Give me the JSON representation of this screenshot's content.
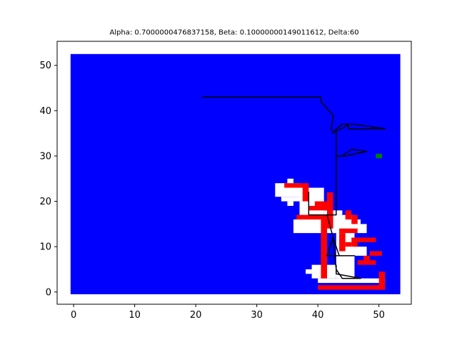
{
  "chart_data": {
    "type": "heatmap",
    "title": "Alpha: 0.7000000476837158, Beta: 0.10000000149011612, Delta:60",
    "xlabel": "",
    "ylabel": "",
    "xlim": [
      -2.7,
      55.3
    ],
    "ylim": [
      -2.7,
      55.3
    ],
    "x_ticks": [
      0,
      10,
      20,
      30,
      40,
      50
    ],
    "y_ticks": [
      0,
      10,
      20,
      30,
      40,
      50
    ],
    "x_tick_labels": [
      "0",
      "10",
      "20",
      "30",
      "40",
      "50"
    ],
    "y_tick_labels": [
      "0",
      "10",
      "20",
      "30",
      "40",
      "50"
    ],
    "grid": false,
    "background_extent": [
      -0.5,
      53.5,
      -0.5,
      52.5
    ],
    "colors": {
      "background": "#0000ff",
      "explored": "#ffffff",
      "obstacle": "#ff0000",
      "goal": "#008000",
      "path": "#000000"
    },
    "explored_cells": [
      [
        35,
        24,
        36,
        25
      ],
      [
        33,
        21,
        37,
        24
      ],
      [
        34,
        20,
        37,
        21
      ],
      [
        35,
        19,
        36,
        20
      ],
      [
        37,
        17,
        41,
        23
      ],
      [
        41,
        17,
        44,
        18
      ],
      [
        36,
        13,
        44,
        16
      ],
      [
        42,
        15,
        46,
        17
      ],
      [
        44,
        15,
        47,
        16
      ],
      [
        43,
        3,
        46,
        15
      ],
      [
        46,
        13,
        48,
        15
      ],
      [
        46,
        8,
        48,
        10
      ],
      [
        39,
        3,
        43,
        6
      ],
      [
        40,
        2,
        51,
        3
      ],
      [
        38,
        4,
        39,
        5
      ]
    ],
    "obstacle_cells": [
      [
        34.5,
        23,
        38.5,
        24
      ],
      [
        37.5,
        20,
        38.5,
        23
      ],
      [
        38.5,
        18,
        41.5,
        19
      ],
      [
        39.5,
        19,
        41.5,
        20
      ],
      [
        41.5,
        14,
        42.5,
        22
      ],
      [
        36.5,
        16,
        41.5,
        17
      ],
      [
        40.5,
        3,
        41.5,
        16
      ],
      [
        44.5,
        16,
        45.5,
        18
      ],
      [
        45.5,
        15,
        46.5,
        17
      ],
      [
        43.5,
        13,
        46.5,
        14
      ],
      [
        43.5,
        9,
        44.5,
        13
      ],
      [
        44.5,
        10,
        45.5,
        11
      ],
      [
        45.5,
        10,
        46.5,
        12
      ],
      [
        46.5,
        11,
        49.5,
        12
      ],
      [
        48.5,
        8,
        50.5,
        9
      ],
      [
        46.5,
        6,
        48.5,
        7
      ],
      [
        47.5,
        7,
        48.5,
        8
      ],
      [
        48.5,
        6,
        49.5,
        7
      ],
      [
        50,
        0.5,
        51,
        4.5
      ],
      [
        40,
        0.5,
        51,
        1.5
      ]
    ],
    "goal": [
      50,
      30
    ],
    "path": [
      [
        21,
        43
      ],
      [
        40.5,
        43
      ],
      [
        40.5,
        42
      ],
      [
        42.5,
        39
      ],
      [
        42.2,
        36
      ],
      [
        42.5,
        35
      ],
      [
        43,
        36
      ],
      [
        44,
        37
      ],
      [
        46,
        37
      ],
      [
        51,
        36
      ],
      [
        45,
        36
      ],
      [
        45,
        37
      ],
      [
        44.5,
        36.5
      ],
      [
        43,
        35.5
      ],
      [
        43,
        30
      ],
      [
        44,
        30
      ],
      [
        45.5,
        31.5
      ],
      [
        48,
        31
      ],
      [
        44.5,
        30
      ],
      [
        43,
        30
      ],
      [
        43,
        17
      ],
      [
        38.5,
        17
      ],
      [
        38.5,
        22
      ],
      [
        38.5,
        17
      ],
      [
        41.5,
        17
      ],
      [
        42.5,
        12
      ],
      [
        41.5,
        8
      ],
      [
        46,
        8
      ],
      [
        43.5,
        8
      ],
      [
        42.5,
        12
      ],
      [
        43,
        5
      ],
      [
        44,
        3
      ],
      [
        47,
        3
      ],
      [
        43,
        4
      ],
      [
        43,
        6
      ]
    ]
  }
}
